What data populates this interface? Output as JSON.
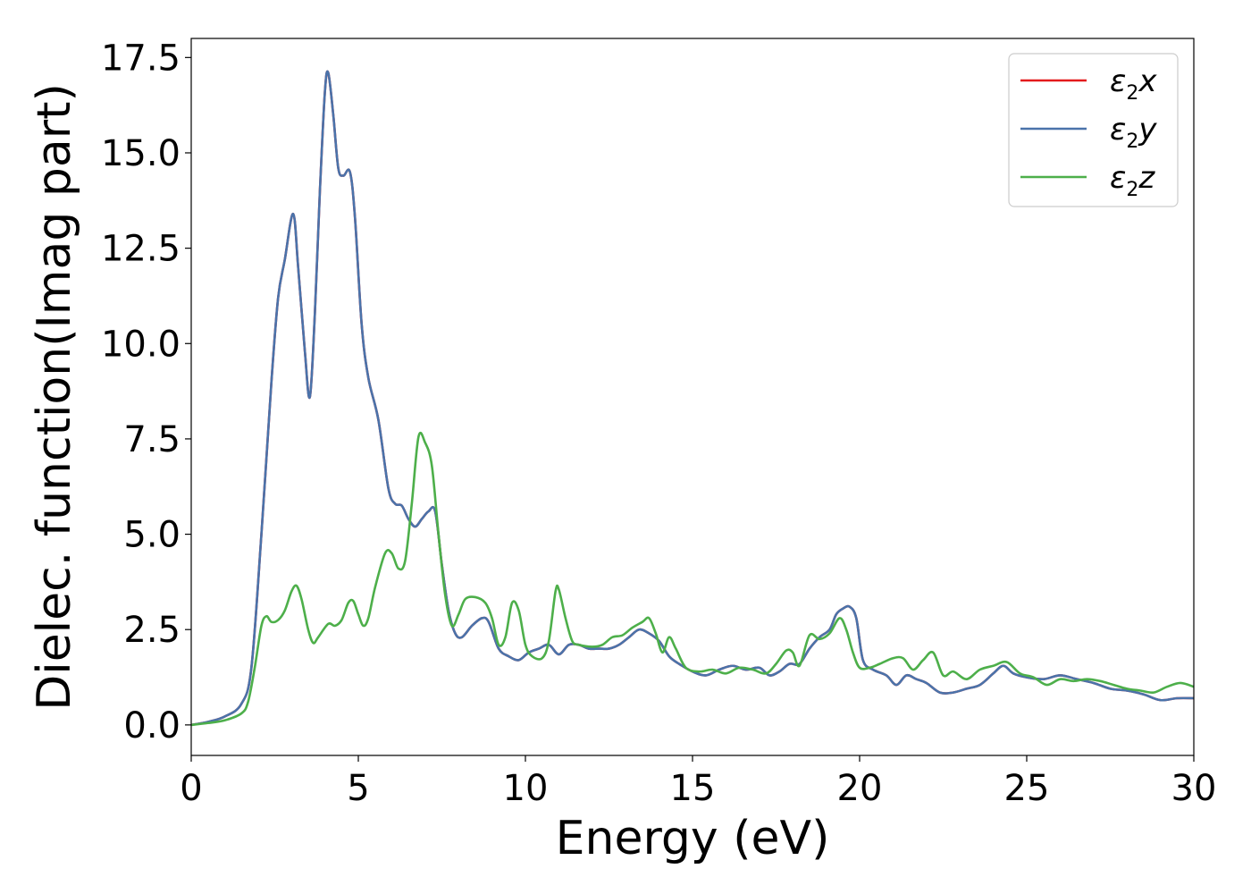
{
  "chart_data": {
    "type": "line",
    "xlabel": "Energy (eV)",
    "ylabel": "Dielec. function(Imag part)",
    "xlim": [
      0,
      30
    ],
    "ylim": [
      -0.8,
      18.0
    ],
    "xticks": [
      0,
      5,
      10,
      15,
      20,
      25,
      30
    ],
    "xtick_labels": [
      "0",
      "5",
      "10",
      "15",
      "20",
      "25",
      "30"
    ],
    "yticks": [
      0.0,
      2.5,
      5.0,
      7.5,
      10.0,
      12.5,
      15.0,
      17.5
    ],
    "ytick_labels": [
      "0.0",
      "2.5",
      "5.0",
      "7.5",
      "10.0",
      "12.5",
      "15.0",
      "17.5"
    ],
    "grid": false,
    "legend_position": "top-right",
    "series": [
      {
        "name": "ε2x",
        "label_main": "ε",
        "label_sub": "2",
        "label_end": "x",
        "color": "#e41a1c",
        "points": [
          [
            0,
            0
          ],
          [
            0.5,
            0.08
          ],
          [
            1.0,
            0.22
          ],
          [
            1.5,
            0.55
          ],
          [
            1.8,
            1.5
          ],
          [
            2.1,
            5.0
          ],
          [
            2.4,
            9.0
          ],
          [
            2.6,
            11.2
          ],
          [
            2.8,
            12.2
          ],
          [
            3.05,
            13.4
          ],
          [
            3.2,
            12.0
          ],
          [
            3.4,
            9.8
          ],
          [
            3.55,
            8.6
          ],
          [
            3.7,
            10.8
          ],
          [
            3.85,
            14.0
          ],
          [
            4.0,
            16.6
          ],
          [
            4.1,
            17.1
          ],
          [
            4.25,
            16.0
          ],
          [
            4.4,
            14.6
          ],
          [
            4.55,
            14.4
          ],
          [
            4.75,
            14.5
          ],
          [
            4.9,
            13.3
          ],
          [
            5.1,
            10.5
          ],
          [
            5.3,
            9.1
          ],
          [
            5.6,
            8.0
          ],
          [
            5.9,
            6.2
          ],
          [
            6.1,
            5.8
          ],
          [
            6.3,
            5.75
          ],
          [
            6.5,
            5.4
          ],
          [
            6.7,
            5.2
          ],
          [
            6.9,
            5.4
          ],
          [
            7.1,
            5.6
          ],
          [
            7.3,
            5.6
          ],
          [
            7.5,
            4.2
          ],
          [
            7.7,
            3.0
          ],
          [
            7.9,
            2.4
          ],
          [
            8.1,
            2.3
          ],
          [
            8.4,
            2.6
          ],
          [
            8.7,
            2.8
          ],
          [
            8.9,
            2.7
          ],
          [
            9.2,
            2.0
          ],
          [
            9.5,
            1.8
          ],
          [
            9.8,
            1.7
          ],
          [
            10.1,
            1.9
          ],
          [
            10.4,
            2.0
          ],
          [
            10.7,
            2.1
          ],
          [
            11.0,
            1.85
          ],
          [
            11.3,
            2.1
          ],
          [
            11.6,
            2.1
          ],
          [
            11.9,
            2.0
          ],
          [
            12.2,
            2.0
          ],
          [
            12.5,
            2.0
          ],
          [
            12.8,
            2.1
          ],
          [
            13.1,
            2.3
          ],
          [
            13.4,
            2.5
          ],
          [
            13.7,
            2.4
          ],
          [
            14.0,
            2.2
          ],
          [
            14.3,
            1.8
          ],
          [
            14.6,
            1.6
          ],
          [
            15.0,
            1.4
          ],
          [
            15.4,
            1.3
          ],
          [
            15.8,
            1.45
          ],
          [
            16.2,
            1.55
          ],
          [
            16.6,
            1.45
          ],
          [
            17.0,
            1.5
          ],
          [
            17.3,
            1.3
          ],
          [
            17.6,
            1.4
          ],
          [
            17.9,
            1.6
          ],
          [
            18.2,
            1.6
          ],
          [
            18.5,
            2.0
          ],
          [
            18.8,
            2.3
          ],
          [
            19.1,
            2.5
          ],
          [
            19.3,
            2.9
          ],
          [
            19.5,
            3.05
          ],
          [
            19.7,
            3.1
          ],
          [
            19.9,
            2.8
          ],
          [
            20.1,
            1.7
          ],
          [
            20.4,
            1.45
          ],
          [
            20.8,
            1.3
          ],
          [
            21.1,
            1.05
          ],
          [
            21.4,
            1.3
          ],
          [
            21.7,
            1.2
          ],
          [
            22.0,
            1.1
          ],
          [
            22.4,
            0.85
          ],
          [
            22.8,
            0.85
          ],
          [
            23.2,
            0.95
          ],
          [
            23.6,
            1.05
          ],
          [
            24.0,
            1.35
          ],
          [
            24.3,
            1.55
          ],
          [
            24.6,
            1.35
          ],
          [
            25.0,
            1.25
          ],
          [
            25.5,
            1.2
          ],
          [
            26.0,
            1.3
          ],
          [
            26.5,
            1.2
          ],
          [
            27.0,
            1.1
          ],
          [
            27.5,
            0.95
          ],
          [
            28.0,
            0.9
          ],
          [
            28.5,
            0.8
          ],
          [
            29.0,
            0.65
          ],
          [
            29.5,
            0.7
          ],
          [
            30.0,
            0.7
          ]
        ]
      },
      {
        "name": "ε2y",
        "label_main": "ε",
        "label_sub": "2",
        "label_end": "y",
        "color": "#4a73aa",
        "points": [
          [
            0,
            0
          ],
          [
            0.5,
            0.08
          ],
          [
            1.0,
            0.22
          ],
          [
            1.5,
            0.55
          ],
          [
            1.8,
            1.5
          ],
          [
            2.1,
            5.0
          ],
          [
            2.4,
            9.0
          ],
          [
            2.6,
            11.2
          ],
          [
            2.8,
            12.2
          ],
          [
            3.05,
            13.4
          ],
          [
            3.2,
            12.0
          ],
          [
            3.4,
            9.8
          ],
          [
            3.55,
            8.6
          ],
          [
            3.7,
            10.8
          ],
          [
            3.85,
            14.0
          ],
          [
            4.0,
            16.6
          ],
          [
            4.1,
            17.1
          ],
          [
            4.25,
            16.0
          ],
          [
            4.4,
            14.6
          ],
          [
            4.55,
            14.4
          ],
          [
            4.75,
            14.5
          ],
          [
            4.9,
            13.3
          ],
          [
            5.1,
            10.5
          ],
          [
            5.3,
            9.1
          ],
          [
            5.6,
            8.0
          ],
          [
            5.9,
            6.2
          ],
          [
            6.1,
            5.8
          ],
          [
            6.3,
            5.75
          ],
          [
            6.5,
            5.4
          ],
          [
            6.7,
            5.2
          ],
          [
            6.9,
            5.4
          ],
          [
            7.1,
            5.6
          ],
          [
            7.3,
            5.6
          ],
          [
            7.5,
            4.2
          ],
          [
            7.7,
            3.0
          ],
          [
            7.9,
            2.4
          ],
          [
            8.1,
            2.3
          ],
          [
            8.4,
            2.6
          ],
          [
            8.7,
            2.8
          ],
          [
            8.9,
            2.7
          ],
          [
            9.2,
            2.0
          ],
          [
            9.5,
            1.8
          ],
          [
            9.8,
            1.7
          ],
          [
            10.1,
            1.9
          ],
          [
            10.4,
            2.0
          ],
          [
            10.7,
            2.1
          ],
          [
            11.0,
            1.85
          ],
          [
            11.3,
            2.1
          ],
          [
            11.6,
            2.1
          ],
          [
            11.9,
            2.0
          ],
          [
            12.2,
            2.0
          ],
          [
            12.5,
            2.0
          ],
          [
            12.8,
            2.1
          ],
          [
            13.1,
            2.3
          ],
          [
            13.4,
            2.5
          ],
          [
            13.7,
            2.4
          ],
          [
            14.0,
            2.2
          ],
          [
            14.3,
            1.8
          ],
          [
            14.6,
            1.6
          ],
          [
            15.0,
            1.4
          ],
          [
            15.4,
            1.3
          ],
          [
            15.8,
            1.45
          ],
          [
            16.2,
            1.55
          ],
          [
            16.6,
            1.45
          ],
          [
            17.0,
            1.5
          ],
          [
            17.3,
            1.3
          ],
          [
            17.6,
            1.4
          ],
          [
            17.9,
            1.6
          ],
          [
            18.2,
            1.6
          ],
          [
            18.5,
            2.0
          ],
          [
            18.8,
            2.3
          ],
          [
            19.1,
            2.5
          ],
          [
            19.3,
            2.9
          ],
          [
            19.5,
            3.05
          ],
          [
            19.7,
            3.1
          ],
          [
            19.9,
            2.8
          ],
          [
            20.1,
            1.7
          ],
          [
            20.4,
            1.45
          ],
          [
            20.8,
            1.3
          ],
          [
            21.1,
            1.05
          ],
          [
            21.4,
            1.3
          ],
          [
            21.7,
            1.2
          ],
          [
            22.0,
            1.1
          ],
          [
            22.4,
            0.85
          ],
          [
            22.8,
            0.85
          ],
          [
            23.2,
            0.95
          ],
          [
            23.6,
            1.05
          ],
          [
            24.0,
            1.35
          ],
          [
            24.3,
            1.55
          ],
          [
            24.6,
            1.35
          ],
          [
            25.0,
            1.25
          ],
          [
            25.5,
            1.2
          ],
          [
            26.0,
            1.3
          ],
          [
            26.5,
            1.2
          ],
          [
            27.0,
            1.1
          ],
          [
            27.5,
            0.95
          ],
          [
            28.0,
            0.9
          ],
          [
            28.5,
            0.8
          ],
          [
            29.0,
            0.65
          ],
          [
            29.5,
            0.7
          ],
          [
            30.0,
            0.7
          ]
        ]
      },
      {
        "name": "ε2z",
        "label_main": "ε",
        "label_sub": "2",
        "label_end": "z",
        "color": "#4daf4a",
        "points": [
          [
            0,
            0
          ],
          [
            0.5,
            0.05
          ],
          [
            1.0,
            0.12
          ],
          [
            1.5,
            0.3
          ],
          [
            1.7,
            0.6
          ],
          [
            1.9,
            1.5
          ],
          [
            2.1,
            2.6
          ],
          [
            2.25,
            2.85
          ],
          [
            2.4,
            2.7
          ],
          [
            2.6,
            2.75
          ],
          [
            2.8,
            3.0
          ],
          [
            3.0,
            3.5
          ],
          [
            3.15,
            3.65
          ],
          [
            3.3,
            3.3
          ],
          [
            3.5,
            2.5
          ],
          [
            3.65,
            2.15
          ],
          [
            3.8,
            2.3
          ],
          [
            4.1,
            2.65
          ],
          [
            4.3,
            2.6
          ],
          [
            4.5,
            2.75
          ],
          [
            4.7,
            3.2
          ],
          [
            4.85,
            3.25
          ],
          [
            5.0,
            2.9
          ],
          [
            5.15,
            2.6
          ],
          [
            5.3,
            2.8
          ],
          [
            5.5,
            3.6
          ],
          [
            5.8,
            4.5
          ],
          [
            6.0,
            4.5
          ],
          [
            6.2,
            4.1
          ],
          [
            6.4,
            4.3
          ],
          [
            6.6,
            5.8
          ],
          [
            6.8,
            7.55
          ],
          [
            7.0,
            7.4
          ],
          [
            7.2,
            6.8
          ],
          [
            7.4,
            5.0
          ],
          [
            7.6,
            3.4
          ],
          [
            7.8,
            2.6
          ],
          [
            8.0,
            2.9
          ],
          [
            8.2,
            3.3
          ],
          [
            8.5,
            3.35
          ],
          [
            8.8,
            3.2
          ],
          [
            9.0,
            2.8
          ],
          [
            9.2,
            2.1
          ],
          [
            9.4,
            2.3
          ],
          [
            9.6,
            3.2
          ],
          [
            9.8,
            3.0
          ],
          [
            10.0,
            2.1
          ],
          [
            10.2,
            1.8
          ],
          [
            10.5,
            1.75
          ],
          [
            10.7,
            2.2
          ],
          [
            10.9,
            3.5
          ],
          [
            11.0,
            3.55
          ],
          [
            11.2,
            2.8
          ],
          [
            11.4,
            2.2
          ],
          [
            11.6,
            2.1
          ],
          [
            12.0,
            2.05
          ],
          [
            12.3,
            2.1
          ],
          [
            12.6,
            2.3
          ],
          [
            12.9,
            2.35
          ],
          [
            13.2,
            2.55
          ],
          [
            13.5,
            2.7
          ],
          [
            13.7,
            2.8
          ],
          [
            13.9,
            2.4
          ],
          [
            14.1,
            1.9
          ],
          [
            14.3,
            2.3
          ],
          [
            14.5,
            2.0
          ],
          [
            14.8,
            1.5
          ],
          [
            15.2,
            1.4
          ],
          [
            15.6,
            1.45
          ],
          [
            16.0,
            1.35
          ],
          [
            16.4,
            1.5
          ],
          [
            16.8,
            1.45
          ],
          [
            17.2,
            1.35
          ],
          [
            17.5,
            1.6
          ],
          [
            17.8,
            1.95
          ],
          [
            18.0,
            1.9
          ],
          [
            18.2,
            1.55
          ],
          [
            18.5,
            2.35
          ],
          [
            18.8,
            2.25
          ],
          [
            19.1,
            2.4
          ],
          [
            19.4,
            2.8
          ],
          [
            19.6,
            2.5
          ],
          [
            19.8,
            1.9
          ],
          [
            20.0,
            1.5
          ],
          [
            20.3,
            1.5
          ],
          [
            20.6,
            1.6
          ],
          [
            21.0,
            1.75
          ],
          [
            21.3,
            1.75
          ],
          [
            21.6,
            1.45
          ],
          [
            21.9,
            1.7
          ],
          [
            22.2,
            1.9
          ],
          [
            22.5,
            1.3
          ],
          [
            22.8,
            1.4
          ],
          [
            23.2,
            1.2
          ],
          [
            23.6,
            1.45
          ],
          [
            24.0,
            1.55
          ],
          [
            24.4,
            1.65
          ],
          [
            24.8,
            1.35
          ],
          [
            25.2,
            1.25
          ],
          [
            25.6,
            1.05
          ],
          [
            26.0,
            1.2
          ],
          [
            26.4,
            1.15
          ],
          [
            26.8,
            1.2
          ],
          [
            27.2,
            1.15
          ],
          [
            27.6,
            1.05
          ],
          [
            28.0,
            0.95
          ],
          [
            28.4,
            0.9
          ],
          [
            28.8,
            0.85
          ],
          [
            29.2,
            1.0
          ],
          [
            29.6,
            1.1
          ],
          [
            30.0,
            1.0
          ]
        ]
      }
    ]
  }
}
